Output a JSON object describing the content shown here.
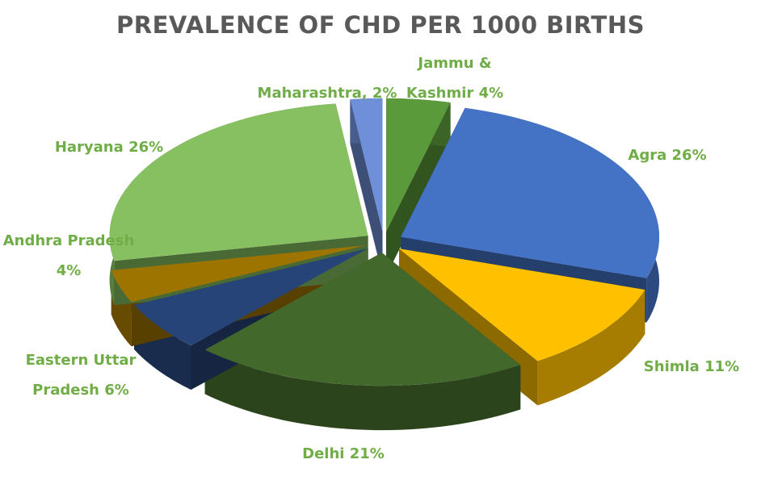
{
  "chart_data": {
    "type": "pie",
    "title": "PREVALENCE OF CHD PER 1000 BIRTHS",
    "categories": [
      "Jammu & Kashmir",
      "Agra",
      "Shimla",
      "Delhi",
      "Eastern Uttar Pradesh",
      "Andhra Pradesh",
      "Haryana",
      "Maharashtra,"
    ],
    "values": [
      4,
      26,
      11,
      21,
      6,
      4,
      26,
      2
    ],
    "value_labels": [
      "4%",
      "26%",
      "11%",
      "21%",
      "6%",
      "4%",
      "26%",
      "2%"
    ],
    "colors": [
      "#5b9a3a",
      "#4472c4",
      "#ffc000",
      "#43682b",
      "#264478",
      "#9e7400",
      "#87c061",
      "#6f8fd8"
    ]
  }
}
